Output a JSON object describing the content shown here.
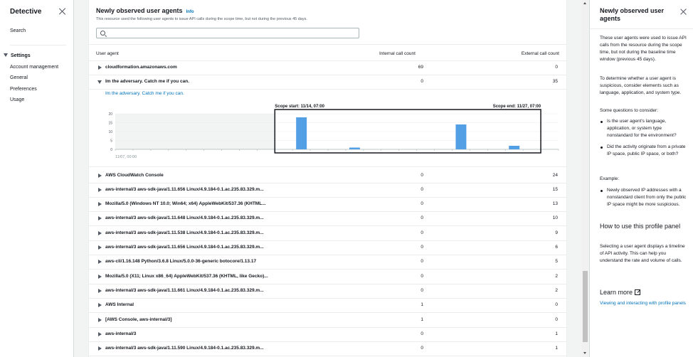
{
  "leftnav": {
    "title": "Detective",
    "search": "Search",
    "settings_label": "Settings",
    "items": [
      "Account management",
      "General",
      "Preferences",
      "Usage"
    ]
  },
  "main": {
    "title": "Newly observed user agents",
    "info": "Info",
    "description": "This resource used the following user agents to issue API calls during the scope time, but not during the previous 45 days.",
    "search_placeholder": "",
    "columns": {
      "user_agent": "User agent",
      "internal": "Internal call count",
      "external": "External call count"
    },
    "rows_top": [
      {
        "name": "cloudformation.amazonaws.com",
        "internal": "69",
        "external": "0"
      },
      {
        "name": "Im the adversary. Catch me if you can.",
        "internal": "0",
        "external": "35"
      }
    ],
    "expanded_link": "Im the adversary. Catch me if you can.",
    "rows_bottom": [
      {
        "name": "AWS CloudWatch Console",
        "internal": "0",
        "external": "24"
      },
      {
        "name": "aws-internal/3 aws-sdk-java/1.11.656 Linux/4.9.184-0.1.ac.235.83.329.m...",
        "internal": "0",
        "external": "15"
      },
      {
        "name": "Mozilla/5.0 (Windows NT 10.0; Win64; x64) AppleWebKit/537.36 (KHTML...",
        "internal": "0",
        "external": "13"
      },
      {
        "name": "aws-internal/3 aws-sdk-java/1.11.648 Linux/4.9.184-0.1.ac.235.83.329.m...",
        "internal": "0",
        "external": "10"
      },
      {
        "name": "aws-internal/3 aws-sdk-java/1.11.538 Linux/4.9.184-0.1.ac.235.83.329.m...",
        "internal": "0",
        "external": "9"
      },
      {
        "name": "aws-internal/3 aws-sdk-java/1.11.656 Linux/4.9.184-0.1.ac.235.83.329.m...",
        "internal": "0",
        "external": "6"
      },
      {
        "name": "aws-cli/1.16.148 Python/3.6.8 Linux/5.0.0-36-generic botocore/1.13.17",
        "internal": "0",
        "external": "5"
      },
      {
        "name": "Mozilla/5.0 (X11; Linux x86_64) AppleWebKit/537.36 (KHTML, like Gecko)...",
        "internal": "0",
        "external": "2"
      },
      {
        "name": "aws-internal/3 aws-sdk-java/1.11.661 Linux/4.9.184-0.1.ac.235.83.329.m...",
        "internal": "0",
        "external": "2"
      },
      {
        "name": "AWS Internal",
        "internal": "1",
        "external": "0"
      },
      {
        "name": "[AWS Console, aws-internal/3]",
        "internal": "1",
        "external": "0"
      },
      {
        "name": "aws-internal/3",
        "internal": "0",
        "external": "1"
      },
      {
        "name": "aws-internal/3 aws-sdk-java/1.11.590 Linux/4.9.184-0.1.ac.235.83.329.m...",
        "internal": "0",
        "external": "1"
      }
    ]
  },
  "chart_data": {
    "type": "bar",
    "scope_start_label": "Scope start: 11/14, 07:00",
    "scope_end_label": "Scope end: 11/27, 07:00",
    "x_first_tick_label": "11/07, 00:00",
    "y_ticks": [
      0,
      5,
      10,
      15,
      20
    ],
    "ylim": [
      0,
      20
    ],
    "bars": [
      {
        "slot": 10,
        "value": 18
      },
      {
        "slot": 13,
        "value": 1
      },
      {
        "slot": 19,
        "value": 14
      },
      {
        "slot": 22,
        "value": 2
      }
    ],
    "total_slots": 25,
    "scope_slot_start": 9,
    "scope_slot_end": 24,
    "colors": {
      "bar": "#539fe5",
      "scope_border": "#16191f",
      "pre_scope_fill": "#f2f3f3"
    }
  },
  "help": {
    "title": "Newly observed user agents",
    "p1": "These user agents were used to issue API calls from the resource during the scope time, but not during the baseline time window (previous 45 days).",
    "p2": "To determine whether a user agent is suspicious, consider elements such as language, application, and system type.",
    "p3": "Some questions to consider:",
    "q1": "Is the user agent's language, application, or system type nonstandard for the environment?",
    "q2": "Did the activity originate from a private IP space, public IP space, or both?",
    "example_label": "Example:",
    "example": "Newly observed IP addresses with a nonstandard client from only the public IP space might be more suspicious.",
    "h2": "How to use this profile panel",
    "p4": "Selecting a user agent displays a timeline of API activity. This can help you understand the rate and volume of calls.",
    "learn_more": "Learn more",
    "learn_link": "Viewing and interacting with profile panels"
  }
}
